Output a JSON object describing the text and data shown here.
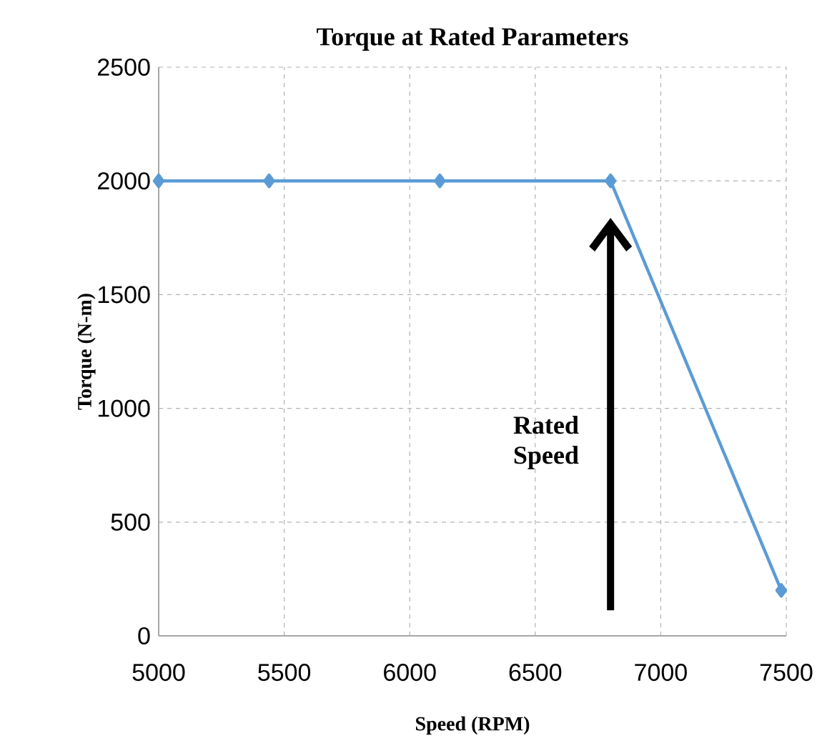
{
  "chart_data": {
    "type": "line",
    "title": "Torque at Rated Parameters",
    "xlabel": "Speed (RPM)",
    "ylabel": "Torque (N-m)",
    "x": [
      5000,
      5440,
      6120,
      6800,
      7480
    ],
    "series": [
      {
        "color": "#5b9bd5",
        "values": [
          2000,
          2000,
          2000,
          2000,
          200
        ]
      }
    ],
    "xlim": [
      5000,
      7500
    ],
    "xticks": [
      5000,
      5500,
      6000,
      6500,
      7000,
      7500
    ],
    "ylim": [
      0,
      2500
    ],
    "yticks": [
      0,
      500,
      1000,
      1500,
      2000,
      2500
    ],
    "grid": true,
    "marker": "diamond",
    "line_style": "solid",
    "annotations": [
      "Rated Speed"
    ]
  }
}
